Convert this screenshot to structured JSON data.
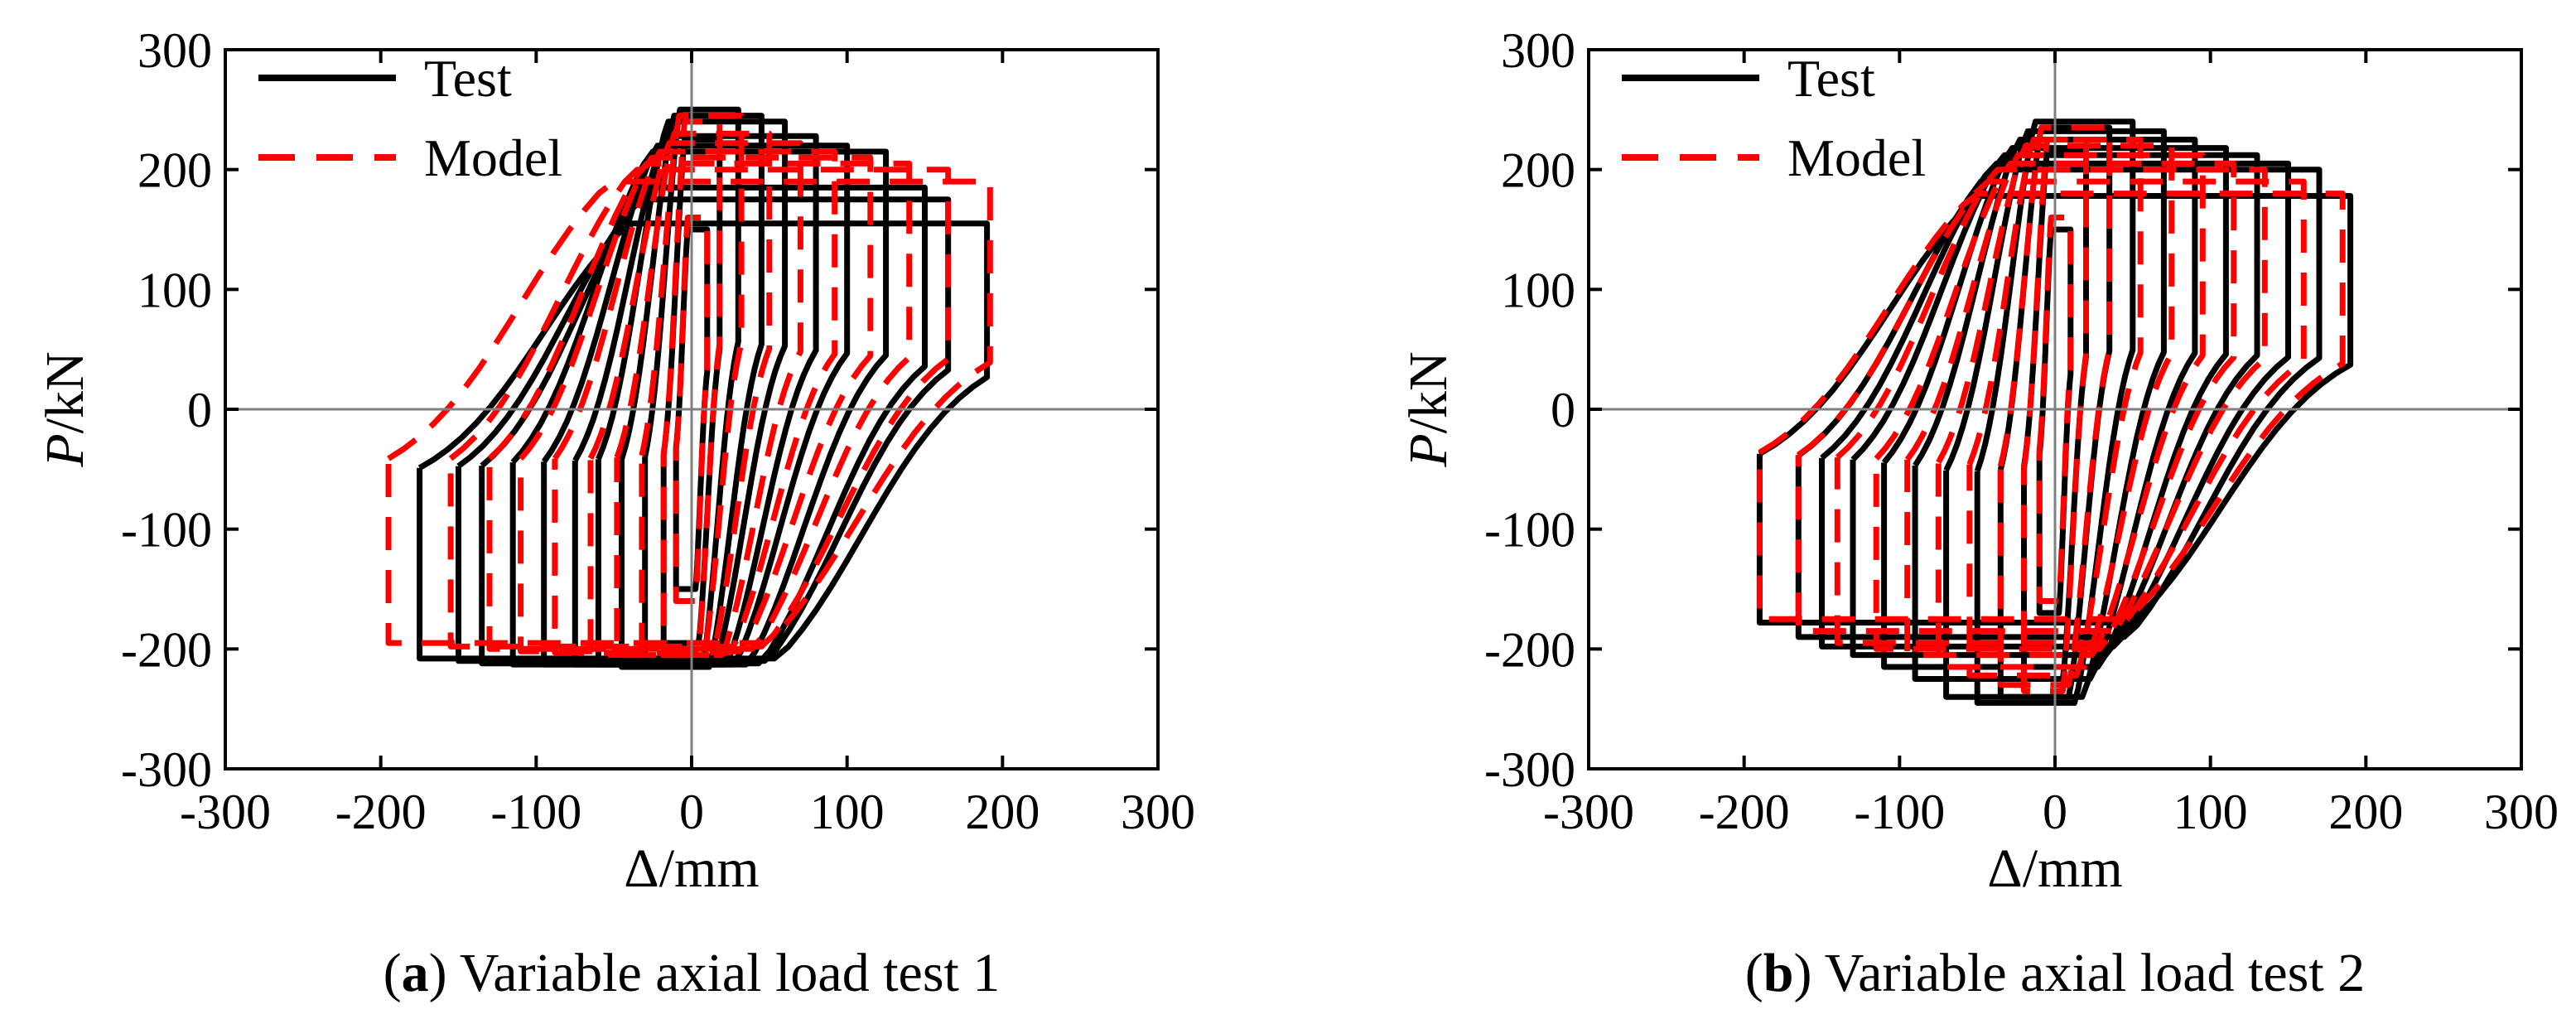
{
  "figure": {
    "colors": {
      "test": "#000000",
      "model": "#ff0000",
      "axis": "#000000",
      "zeroline": "#808080"
    }
  },
  "chart_data": [
    {
      "type": "line",
      "panel_label": "a",
      "caption": "Variable axial load test 1",
      "xlabel": "Δ/mm",
      "ylabel_italic": "P",
      "ylabel_rest": "/kN",
      "xlim": [
        -300,
        300
      ],
      "ylim": [
        -300,
        300
      ],
      "xticks": [
        -300,
        -200,
        -100,
        0,
        100,
        200,
        300
      ],
      "yticks": [
        -300,
        -200,
        -100,
        0,
        100,
        200,
        300
      ],
      "legend": {
        "position": "top-left",
        "entries": [
          "Test",
          "Model"
        ]
      },
      "series": [
        {
          "name": "Test",
          "style": "solid",
          "cycles": [
            {
              "dmax": 10,
              "pmax": 150,
              "dmin": -10,
              "pmin": -150
            },
            {
              "dmax": 18,
              "pmax": 225,
              "dmin": -18,
              "pmin": -195
            },
            {
              "dmax": 30,
              "pmax": 250,
              "dmin": -30,
              "pmin": -210
            },
            {
              "dmax": 45,
              "pmax": 245,
              "dmin": -45,
              "pmin": -215
            },
            {
              "dmax": 60,
              "pmax": 240,
              "dmin": -60,
              "pmin": -213
            },
            {
              "dmax": 80,
              "pmax": 228,
              "dmin": -75,
              "pmin": -213
            },
            {
              "dmax": 100,
              "pmax": 220,
              "dmin": -95,
              "pmin": -213
            },
            {
              "dmax": 125,
              "pmax": 215,
              "dmin": -115,
              "pmin": -213
            },
            {
              "dmax": 150,
              "pmax": 185,
              "dmin": -135,
              "pmin": -212
            },
            {
              "dmax": 165,
              "pmax": 175,
              "dmin": -150,
              "pmin": -210
            },
            {
              "dmax": 190,
              "pmax": 155,
              "dmin": -175,
              "pmin": -208
            }
          ]
        },
        {
          "name": "Model",
          "style": "dashed",
          "cycles": [
            {
              "dmax": 10,
              "pmax": 160,
              "dmin": -10,
              "pmin": -160
            },
            {
              "dmax": 18,
              "pmax": 240,
              "dmin": -18,
              "pmin": -200
            },
            {
              "dmax": 32,
              "pmax": 245,
              "dmin": -32,
              "pmin": -205
            },
            {
              "dmax": 50,
              "pmax": 230,
              "dmin": -48,
              "pmin": -205
            },
            {
              "dmax": 70,
              "pmax": 222,
              "dmin": -65,
              "pmin": -205
            },
            {
              "dmax": 92,
              "pmax": 215,
              "dmin": -88,
              "pmin": -203
            },
            {
              "dmax": 115,
              "pmax": 210,
              "dmin": -110,
              "pmin": -202
            },
            {
              "dmax": 140,
              "pmax": 205,
              "dmin": -130,
              "pmin": -200
            },
            {
              "dmax": 165,
              "pmax": 200,
              "dmin": -155,
              "pmin": -198
            },
            {
              "dmax": 192,
              "pmax": 190,
              "dmin": -195,
              "pmin": -195
            }
          ]
        }
      ]
    },
    {
      "type": "line",
      "panel_label": "b",
      "caption": "Variable axial load test 2",
      "xlabel": "Δ/mm",
      "ylabel_italic": "P",
      "ylabel_rest": "/kN",
      "xlim": [
        -300,
        300
      ],
      "ylim": [
        -300,
        300
      ],
      "xticks": [
        -300,
        -200,
        -100,
        0,
        100,
        200,
        300
      ],
      "yticks": [
        -300,
        -200,
        -100,
        0,
        100,
        200,
        300
      ],
      "legend": {
        "position": "top-left",
        "entries": [
          "Test",
          "Model"
        ]
      },
      "series": [
        {
          "name": "Test",
          "style": "solid",
          "cycles": [
            {
              "dmax": 10,
              "pmax": 150,
              "dmin": -10,
              "pmin": -170
            },
            {
              "dmax": 20,
              "pmax": 215,
              "dmin": -20,
              "pmin": -225
            },
            {
              "dmax": 35,
              "pmax": 235,
              "dmin": -35,
              "pmin": -240
            },
            {
              "dmax": 50,
              "pmax": 240,
              "dmin": -50,
              "pmin": -245
            },
            {
              "dmax": 70,
              "pmax": 232,
              "dmin": -70,
              "pmin": -240
            },
            {
              "dmax": 90,
              "pmax": 225,
              "dmin": -90,
              "pmin": -225
            },
            {
              "dmax": 110,
              "pmax": 218,
              "dmin": -110,
              "pmin": -215
            },
            {
              "dmax": 130,
              "pmax": 212,
              "dmin": -130,
              "pmin": -205
            },
            {
              "dmax": 150,
              "pmax": 205,
              "dmin": -150,
              "pmin": -198
            },
            {
              "dmax": 170,
              "pmax": 200,
              "dmin": -165,
              "pmin": -190
            },
            {
              "dmax": 190,
              "pmax": 178,
              "dmin": -190,
              "pmin": -178
            }
          ]
        },
        {
          "name": "Model",
          "style": "dashed",
          "cycles": [
            {
              "dmax": 10,
              "pmax": 160,
              "dmin": -10,
              "pmin": -160
            },
            {
              "dmax": 20,
              "pmax": 225,
              "dmin": -20,
              "pmin": -235
            },
            {
              "dmax": 35,
              "pmax": 235,
              "dmin": -35,
              "pmin": -230
            },
            {
              "dmax": 55,
              "pmax": 225,
              "dmin": -55,
              "pmin": -222
            },
            {
              "dmax": 75,
              "pmax": 220,
              "dmin": -75,
              "pmin": -215
            },
            {
              "dmax": 95,
              "pmax": 212,
              "dmin": -95,
              "pmin": -205
            },
            {
              "dmax": 115,
              "pmax": 205,
              "dmin": -115,
              "pmin": -200
            },
            {
              "dmax": 135,
              "pmax": 200,
              "dmin": -140,
              "pmin": -195
            },
            {
              "dmax": 160,
              "pmax": 190,
              "dmin": -165,
              "pmin": -185
            },
            {
              "dmax": 185,
              "pmax": 180,
              "dmin": -190,
              "pmin": -175
            }
          ]
        }
      ]
    }
  ]
}
